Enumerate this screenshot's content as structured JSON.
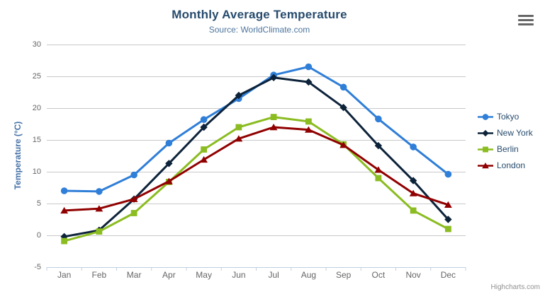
{
  "subtitle": "Source: WorldClimate.com",
  "credits": "Highcharts.com",
  "context_menu_icon": "hamburger-icon",
  "chart_data": {
    "type": "line",
    "title": "Monthly Average Temperature",
    "subtitle": "Source: WorldClimate.com",
    "xlabel": "",
    "ylabel": "Temperature (°C)",
    "categories": [
      "Jan",
      "Feb",
      "Mar",
      "Apr",
      "May",
      "Jun",
      "Jul",
      "Aug",
      "Sep",
      "Oct",
      "Nov",
      "Dec"
    ],
    "series": [
      {
        "name": "Tokyo",
        "color": "#2f7ed8",
        "marker": "circle",
        "values": [
          7.0,
          6.9,
          9.5,
          14.5,
          18.2,
          21.5,
          25.2,
          26.5,
          23.3,
          18.3,
          13.9,
          9.6
        ]
      },
      {
        "name": "New York",
        "color": "#0d233a",
        "marker": "diamond",
        "values": [
          -0.2,
          0.8,
          5.7,
          11.3,
          17.0,
          22.0,
          24.8,
          24.1,
          20.1,
          14.1,
          8.6,
          2.5
        ]
      },
      {
        "name": "Berlin",
        "color": "#8bbc21",
        "marker": "square",
        "values": [
          -0.9,
          0.6,
          3.5,
          8.4,
          13.5,
          17.0,
          18.6,
          17.9,
          14.3,
          9.0,
          3.9,
          1.0
        ]
      },
      {
        "name": "London",
        "color": "#910000",
        "marker": "triangle",
        "values": [
          3.9,
          4.2,
          5.7,
          8.5,
          11.9,
          15.2,
          17.0,
          16.6,
          14.2,
          10.3,
          6.6,
          4.8
        ]
      }
    ],
    "ylim": [
      -5,
      30
    ],
    "yticks": [
      -5,
      0,
      5,
      10,
      15,
      20,
      25,
      30
    ],
    "grid": true,
    "legend_position": "right",
    "grid_color": "#c8c8c8",
    "axis_line_color": "#c0d0e0"
  }
}
